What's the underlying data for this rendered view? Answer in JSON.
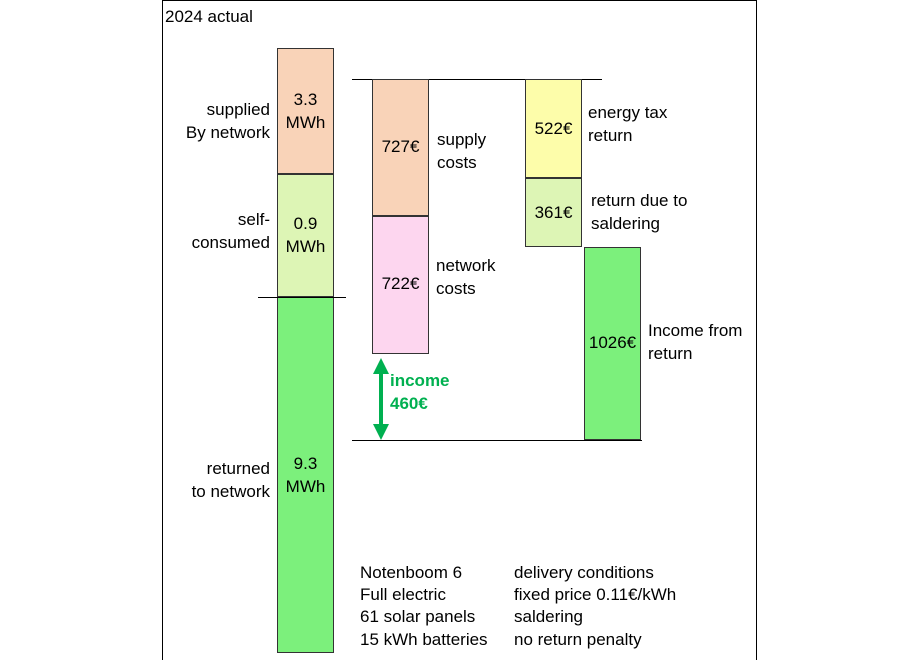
{
  "title": "2024 actual",
  "energy": {
    "supplied": {
      "label": "supplied\nBy  network",
      "value": "3.3\nMWh",
      "color": "#f9d3b8"
    },
    "self": {
      "label": "self-\nconsumed",
      "value": "0.9\nMWh",
      "color": "#ddf5b5"
    },
    "returned": {
      "label": "returned\nto network",
      "value": "9.3\nMWh",
      "color": "#7cf07c"
    }
  },
  "costs": {
    "supply": {
      "value": "727€",
      "label": "supply\ncosts",
      "color": "#f9d3b8"
    },
    "network": {
      "value": "722€",
      "label": "network\ncosts",
      "color": "#fdd6ef"
    }
  },
  "income": {
    "label": "income\n460€",
    "color": "#00b050"
  },
  "returns": {
    "energy_tax": {
      "value": "522€",
      "label": "energy tax\nreturn",
      "color": "#fdfdaa"
    },
    "saldering": {
      "value": "361€",
      "label": "return due to\nsaldering",
      "color": "#ddf5b5"
    },
    "income_return": {
      "value": "1026€",
      "label": "Income from\nreturn",
      "color": "#7cf07c"
    }
  },
  "notes_left": [
    "Notenboom 6",
    "Full electric",
    "61 solar panels",
    "15 kWh batteries"
  ],
  "notes_right": [
    "delivery conditions",
    "fixed price 0.11€/kWh",
    "saldering",
    "no return penalty"
  ]
}
